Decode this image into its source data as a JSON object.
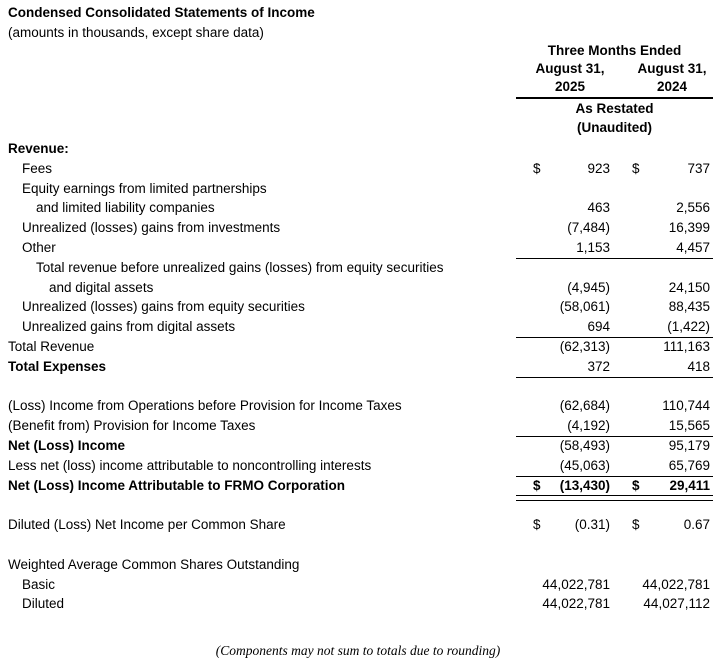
{
  "header": {
    "title": "Condensed Consolidated Statements of Income",
    "subtitle": "(amounts in thousands, except share data)",
    "period_label": "Three Months Ended",
    "columns": [
      {
        "month": "August 31,",
        "year": "2025"
      },
      {
        "month": "August 31,",
        "year": "2024"
      }
    ],
    "restated_label": "As Restated",
    "unaudited_label": "(Unaudited)"
  },
  "rows": [
    {
      "label": "Revenue:",
      "indent": 0,
      "bold": true
    },
    {
      "label": "Fees",
      "indent": 1,
      "d1": "$",
      "v1": "923",
      "d2": "$",
      "v2": "737"
    },
    {
      "label": "Equity earnings from limited partnerships",
      "indent": 1
    },
    {
      "label": "and limited liability companies",
      "indent": 2,
      "v1": "463",
      "v2": "2,556"
    },
    {
      "label": "Unrealized (losses) gains from investments",
      "indent": 1,
      "v1": "(7,484)",
      "v2": "16,399"
    },
    {
      "label": "Other",
      "indent": 1,
      "v1": "1,153",
      "v2": "4,457",
      "rule": "single"
    },
    {
      "label": "Total revenue before unrealized gains (losses) from equity securities",
      "indent": 2
    },
    {
      "label": "and digital assets",
      "indent": 3,
      "v1": "(4,945)",
      "v2": "24,150"
    },
    {
      "label": "Unrealized (losses) gains from equity securities",
      "indent": 1,
      "v1": "(58,061)",
      "v2": "88,435"
    },
    {
      "label": "Unrealized gains from digital assets",
      "indent": 1,
      "v1": "694",
      "v2": "(1,422)",
      "rule": "single"
    },
    {
      "label": "Total Revenue",
      "indent": 0,
      "v1": "(62,313)",
      "v2": "111,163"
    },
    {
      "label": "Total Expenses",
      "indent": 0,
      "bold": true,
      "v1": "372",
      "v2": "418",
      "rule": "single"
    },
    {
      "spacer": true
    },
    {
      "label": "(Loss) Income from Operations before Provision for Income Taxes",
      "indent": 0,
      "v1": "(62,684)",
      "v2": "110,744"
    },
    {
      "label": "(Benefit from) Provision for Income Taxes",
      "indent": 0,
      "v1": "(4,192)",
      "v2": "15,565",
      "rule": "single"
    },
    {
      "label": "Net (Loss) Income",
      "indent": 0,
      "bold": true,
      "v1": "(58,493)",
      "v2": "95,179"
    },
    {
      "label": "Less net (loss) income attributable to noncontrolling interests",
      "indent": 0,
      "v1": "(45,063)",
      "v2": "65,769",
      "rule": "single"
    },
    {
      "label": "Net (Loss) Income Attributable to FRMO Corporation",
      "indent": 0,
      "bold": true,
      "d1": "$",
      "v1": "(13,430)",
      "d2": "$",
      "v2": "29,411",
      "vbold": true,
      "rule": "double"
    },
    {
      "spacer": true
    },
    {
      "label": "Diluted (Loss) Net Income per Common Share",
      "indent": 0,
      "d1": "$",
      "v1": "(0.31)",
      "d2": "$",
      "v2": "0.67"
    },
    {
      "spacer": true
    },
    {
      "label": "Weighted Average Common Shares Outstanding",
      "indent": 0
    },
    {
      "label": "Basic",
      "indent": 1,
      "v1": "44,022,781",
      "v2": "44,022,781"
    },
    {
      "label": "Diluted",
      "indent": 1,
      "v1": "44,022,781",
      "v2": "44,027,112"
    }
  ],
  "footer": {
    "note": "(Components may not sum to totals due to rounding)"
  }
}
